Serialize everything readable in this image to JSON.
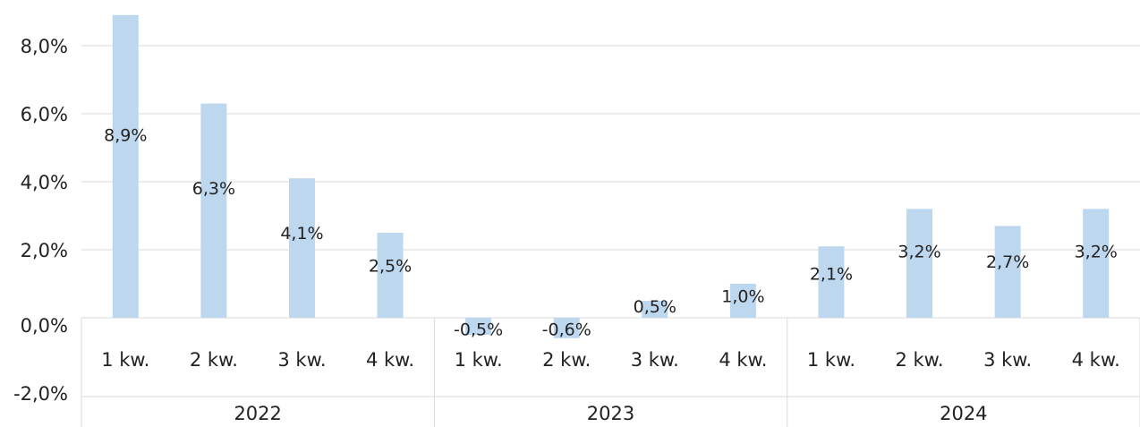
{
  "chart_data": {
    "type": "bar",
    "categories": [
      "1 kw.",
      "2 kw.",
      "3 kw.",
      "4 kw.",
      "1 kw.",
      "2 kw.",
      "3 kw.",
      "4 kw.",
      "1 kw.",
      "2 kw.",
      "3 kw.",
      "4 kw."
    ],
    "groups": [
      "2022",
      "2023",
      "2024"
    ],
    "values": [
      8.9,
      6.3,
      4.1,
      2.5,
      -0.5,
      -0.6,
      0.5,
      1.0,
      2.1,
      3.2,
      2.7,
      3.2
    ],
    "value_labels": [
      "8,9%",
      "6,3%",
      "4,1%",
      "2,5%",
      "-0,5%",
      "-0,6%",
      "0,5%",
      "1,0%",
      "2,1%",
      "3,2%",
      "2,7%",
      "3,2%"
    ],
    "color": "#bdd7ee",
    "ylim": [
      -2,
      9.3
    ],
    "yticks": [
      {
        "value": -2,
        "label": "-2,0%"
      },
      {
        "value": 0,
        "label": "0,0%"
      },
      {
        "value": 2,
        "label": "2,0%"
      },
      {
        "value": 4,
        "label": "4,0%"
      },
      {
        "value": 6,
        "label": "6,0%"
      },
      {
        "value": 8,
        "label": "8,0%"
      }
    ],
    "grid": true
  }
}
